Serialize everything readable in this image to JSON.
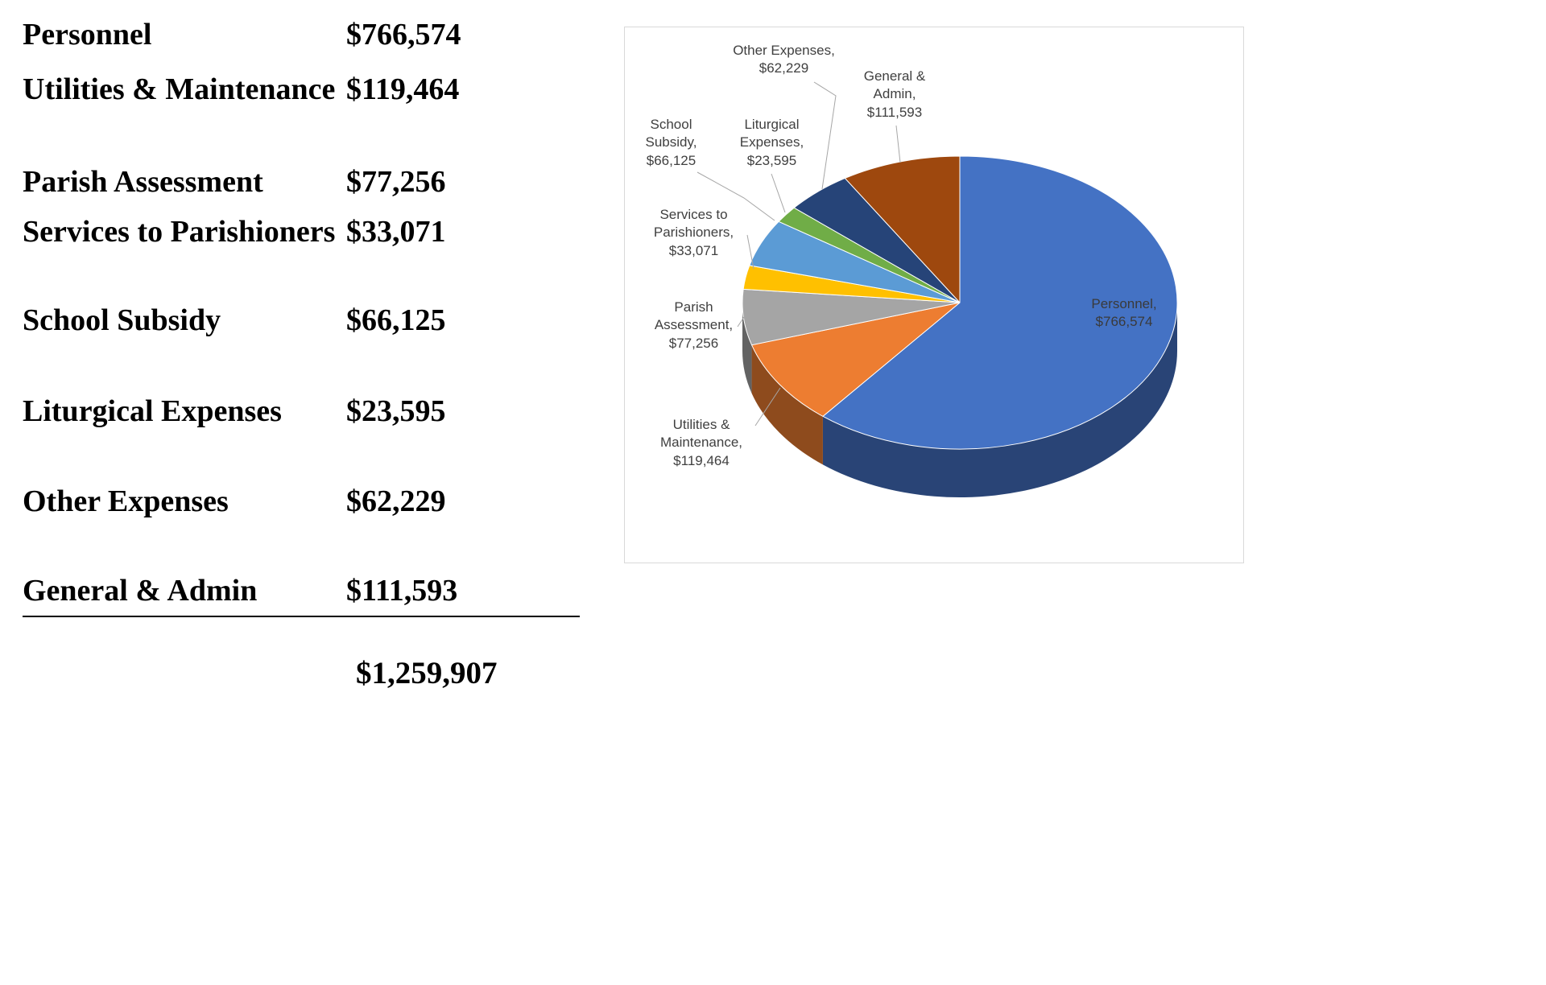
{
  "expense_table": {
    "rows": [
      {
        "label": "Personnel",
        "value": "$766,574"
      },
      {
        "label": "Utilities & Maintenance",
        "value": "$119,464"
      },
      {
        "label": "Parish Assessment",
        "value": "$77,256"
      },
      {
        "label": "Services to Parishioners",
        "value": "$33,071"
      },
      {
        "label": "School Subsidy",
        "value": "$66,125"
      },
      {
        "label": "Liturgical Expenses",
        "value": "$23,595"
      },
      {
        "label": "Other Expenses",
        "value": "$62,229"
      },
      {
        "label": "General & Admin",
        "value": "$111,593"
      }
    ],
    "total": "$1,259,907"
  },
  "chart_data": {
    "type": "pie",
    "style": "3d",
    "title": "",
    "legend": "none",
    "direction": "clockwise",
    "start_angle_deg": 0,
    "categories": [
      "Personnel",
      "Utilities & Maintenance",
      "Parish Assessment",
      "Services to Parishioners",
      "School Subsidy",
      "Liturgical Expenses",
      "Other Expenses",
      "General & Admin"
    ],
    "values": [
      766574,
      119464,
      77256,
      33071,
      66125,
      23595,
      62229,
      111593
    ],
    "total": 1259907,
    "point_labels": [
      "Personnel, $766,574",
      "Utilities & Maintenance, $119,464",
      "Parish Assessment, $77,256",
      "Services to Parishioners, $33,071",
      "School Subsidy, $66,125",
      "Liturgical Expenses, $23,595",
      "Other Expenses, $62,229",
      "General & Admin, $111,593"
    ],
    "colors": [
      "#4472c4",
      "#ed7d31",
      "#a5a5a5",
      "#ffc000",
      "#5b9bd5",
      "#70ad47",
      "#264478",
      "#9e480e"
    ]
  }
}
